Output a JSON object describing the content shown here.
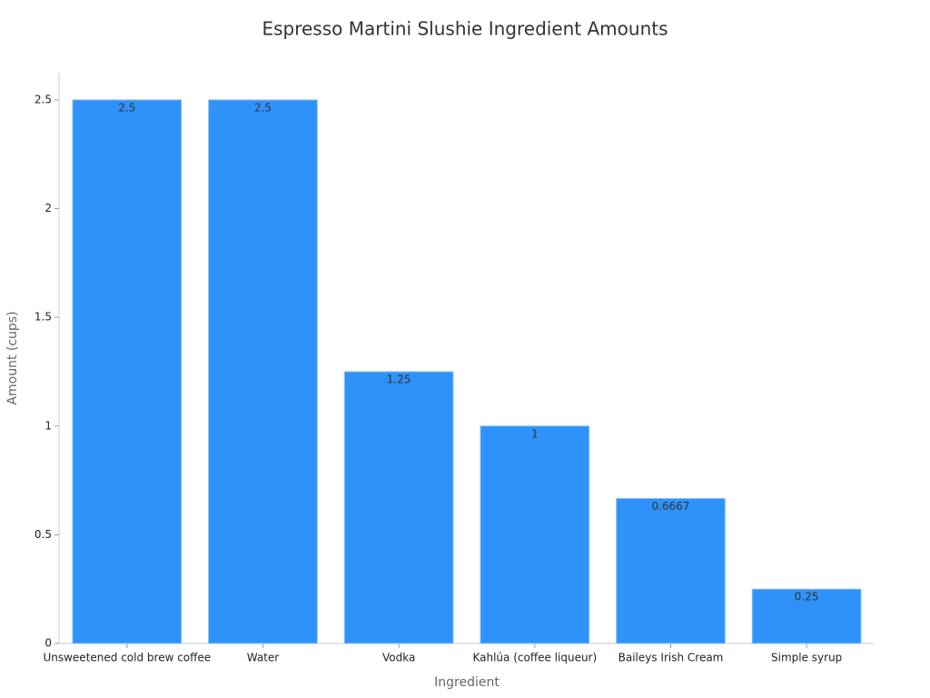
{
  "chart_data": {
    "type": "bar",
    "title": "Espresso Martini Slushie Ingredient Amounts",
    "x_label": "Ingredient",
    "y_label": "Amount (cups)",
    "categories": [
      "Unsweetened cold brew coffee",
      "Water",
      "Vodka",
      "Kahlúa (coffee liqueur)",
      "Baileys Irish Cream",
      "Simple syrup"
    ],
    "values": [
      2.5,
      2.5,
      1.25,
      1,
      0.6667,
      0.25
    ],
    "color": "#2f92f8",
    "ylim": [
      0,
      2.625
    ],
    "yticks": [
      0,
      0.5,
      1,
      1.5,
      2,
      2.5
    ],
    "grid": false
  }
}
